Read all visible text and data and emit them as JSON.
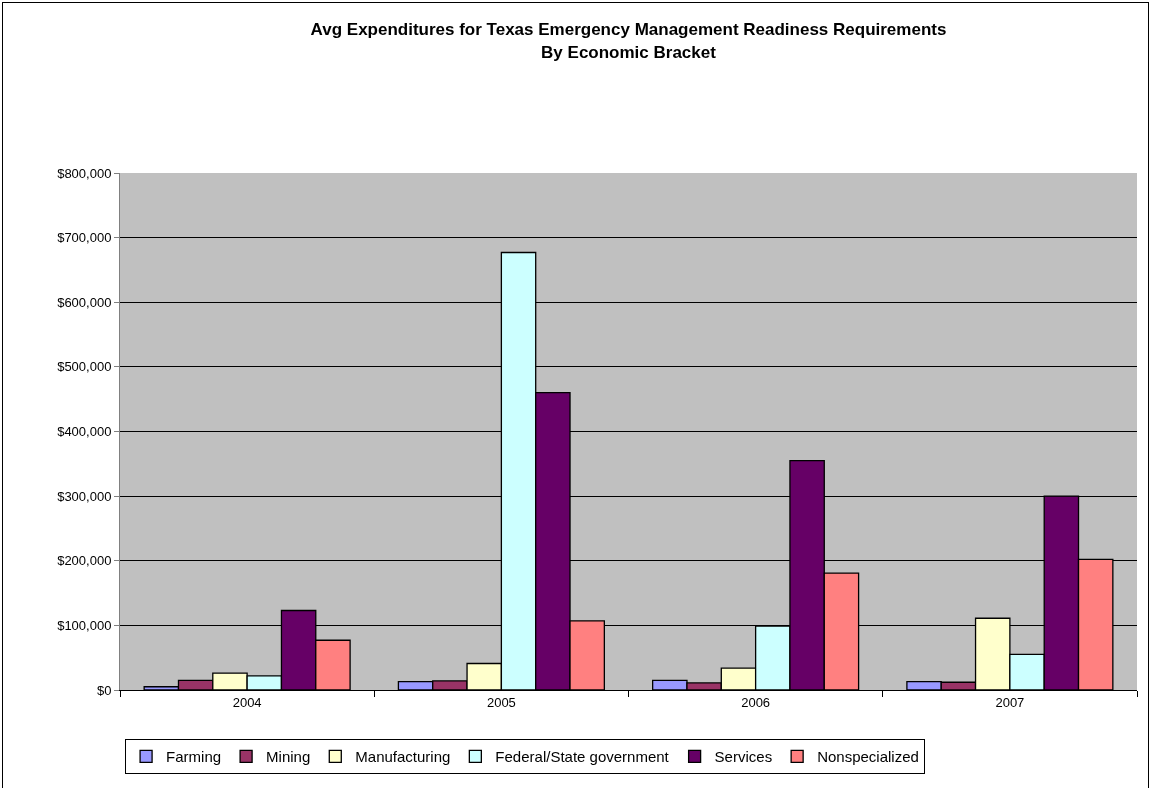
{
  "chart_data": {
    "type": "bar",
    "title": "Avg Expenditures for Texas Emergency Management Readiness Requirements\nBy Economic Bracket",
    "categories": [
      "2004",
      "2005",
      "2006",
      "2007"
    ],
    "series": [
      {
        "name": "Farming",
        "color": "#9999ff",
        "values": [
          5000,
          13000,
          15000,
          13000
        ]
      },
      {
        "name": "Mining",
        "color": "#993366",
        "values": [
          15000,
          14000,
          11000,
          12000
        ]
      },
      {
        "name": "Manufacturing",
        "color": "#ffffcc",
        "values": [
          26000,
          41000,
          34000,
          111000
        ]
      },
      {
        "name": "Federal/State government",
        "color": "#ccffff",
        "values": [
          22000,
          677000,
          99000,
          55000
        ]
      },
      {
        "name": "Services",
        "color": "#660066",
        "values": [
          123000,
          460000,
          355000,
          300000
        ]
      },
      {
        "name": "Nonspecialized",
        "color": "#ff8080",
        "values": [
          77000,
          107000,
          181000,
          202000
        ]
      }
    ],
    "ylim": [
      0,
      800000
    ],
    "yticks": [
      {
        "value": 0,
        "label": "$0"
      },
      {
        "value": 100000,
        "label": "$100,000"
      },
      {
        "value": 200000,
        "label": "$200,000"
      },
      {
        "value": 300000,
        "label": "$300,000"
      },
      {
        "value": 400000,
        "label": "$400,000"
      },
      {
        "value": 500000,
        "label": "$500,000"
      },
      {
        "value": 600000,
        "label": "$600,000"
      },
      {
        "value": 700000,
        "label": "$700,000"
      },
      {
        "value": 800000,
        "label": "$800,000"
      }
    ],
    "grid": "y",
    "legend": "bottom"
  }
}
